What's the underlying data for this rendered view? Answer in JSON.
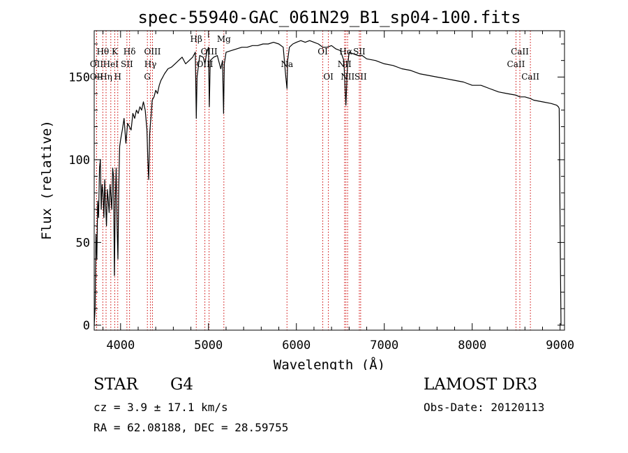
{
  "chart_data": {
    "type": "line",
    "title": "spec-55940-GAC_061N29_B1_sp04-100.fits",
    "xlabel": "Wavelength (Å)",
    "ylabel": "Flux (relative)",
    "xlim": [
      3700,
      9050
    ],
    "ylim": [
      -3,
      178
    ],
    "x_ticks": [
      4000,
      5000,
      6000,
      7000,
      8000,
      9000
    ],
    "y_ticks": [
      0,
      50,
      100,
      150
    ],
    "grid": false,
    "series": [
      {
        "name": "spectrum",
        "color": "#000000",
        "x": [
          3700,
          3710,
          3720,
          3730,
          3740,
          3750,
          3760,
          3770,
          3780,
          3790,
          3800,
          3810,
          3820,
          3830,
          3840,
          3850,
          3860,
          3870,
          3880,
          3890,
          3900,
          3910,
          3920,
          3930,
          3940,
          3950,
          3960,
          3970,
          3980,
          3990,
          4000,
          4020,
          4040,
          4060,
          4080,
          4100,
          4120,
          4140,
          4160,
          4180,
          4200,
          4220,
          4240,
          4260,
          4280,
          4300,
          4310,
          4320,
          4330,
          4340,
          4350,
          4360,
          4380,
          4400,
          4420,
          4440,
          4460,
          4480,
          4500,
          4540,
          4580,
          4620,
          4660,
          4700,
          4740,
          4780,
          4820,
          4850,
          4861,
          4870,
          4900,
          4940,
          4960,
          4980,
          5000,
          5010,
          5020,
          5060,
          5100,
          5140,
          5160,
          5172,
          5180,
          5200,
          5260,
          5320,
          5380,
          5440,
          5500,
          5560,
          5620,
          5680,
          5740,
          5800,
          5850,
          5880,
          5893,
          5900,
          5920,
          5960,
          6000,
          6050,
          6100,
          6150,
          6200,
          6250,
          6300,
          6350,
          6400,
          6450,
          6500,
          6540,
          6563,
          6580,
          6600,
          6650,
          6700,
          6750,
          6800,
          6900,
          7000,
          7100,
          7200,
          7300,
          7400,
          7500,
          7600,
          7700,
          7800,
          7900,
          8000,
          8100,
          8200,
          8300,
          8400,
          8500,
          8542,
          8600,
          8662,
          8700,
          8800,
          8900,
          8960,
          8980,
          8990,
          9000,
          9005,
          9010
        ],
        "y": [
          0,
          10,
          55,
          40,
          75,
          65,
          95,
          100,
          70,
          85,
          80,
          65,
          88,
          72,
          60,
          82,
          75,
          68,
          85,
          78,
          70,
          95,
          90,
          30,
          75,
          95,
          60,
          40,
          85,
          108,
          112,
          118,
          125,
          110,
          122,
          120,
          118,
          128,
          125,
          130,
          128,
          132,
          130,
          135,
          130,
          118,
          100,
          88,
          115,
          122,
          128,
          136,
          138,
          142,
          140,
          145,
          148,
          150,
          152,
          155,
          156,
          158,
          160,
          162,
          158,
          160,
          162,
          165,
          125,
          150,
          163,
          162,
          158,
          165,
          168,
          132,
          160,
          162,
          163,
          155,
          160,
          128,
          158,
          165,
          166,
          167,
          168,
          168,
          169,
          169,
          170,
          170,
          171,
          170,
          168,
          150,
          143,
          160,
          168,
          170,
          171,
          172,
          171,
          172,
          171,
          170,
          168,
          168,
          169,
          167,
          166,
          160,
          133,
          155,
          165,
          164,
          163,
          163,
          161,
          160,
          158,
          157,
          155,
          154,
          152,
          151,
          150,
          149,
          148,
          147,
          145,
          145,
          143,
          141,
          140,
          139,
          138,
          138,
          137,
          136,
          135,
          134,
          133,
          132,
          131,
          60,
          30,
          0
        ]
      }
    ],
    "lines": [
      {
        "label": "Hθ",
        "wl": 3798,
        "row": 1
      },
      {
        "label": "OII",
        "wl": 3727,
        "row": 2
      },
      {
        "label": "OII",
        "wl": 3727,
        "row": 3
      },
      {
        "label": "Hη",
        "wl": 3835,
        "row": 3
      },
      {
        "label": "K",
        "wl": 3934,
        "row": 1
      },
      {
        "label": "HeI",
        "wl": 3889,
        "row": 2
      },
      {
        "label": "SII",
        "wl": 4072,
        "row": 2
      },
      {
        "label": "H",
        "wl": 3968,
        "row": 3
      },
      {
        "label": "Hδ",
        "wl": 4102,
        "row": 1
      },
      {
        "label": "OIII",
        "wl": 4363,
        "row": 1
      },
      {
        "label": "Hγ",
        "wl": 4340,
        "row": 2
      },
      {
        "label": "G",
        "wl": 4305,
        "row": 3
      },
      {
        "label": "OIII",
        "wl": 5007,
        "row": 1
      },
      {
        "label": "OIII",
        "wl": 4959,
        "row": 2
      },
      {
        "label": "Hβ",
        "wl": 4861,
        "row": 0
      },
      {
        "label": "Mg",
        "wl": 5175,
        "row": 0
      },
      {
        "label": "Na",
        "wl": 5893,
        "row": 2
      },
      {
        "label": "OI",
        "wl": 6300,
        "row": 1
      },
      {
        "label": "OI",
        "wl": 6364,
        "row": 3
      },
      {
        "label": "Hα",
        "wl": 6563,
        "row": 1
      },
      {
        "label": "SII",
        "wl": 6716,
        "row": 1
      },
      {
        "label": "NII",
        "wl": 6548,
        "row": 2
      },
      {
        "label": "NII",
        "wl": 6583,
        "row": 3
      },
      {
        "label": "SII",
        "wl": 6731,
        "row": 3
      },
      {
        "label": "CaII",
        "wl": 8542,
        "row": 1
      },
      {
        "label": "CaII",
        "wl": 8498,
        "row": 2
      },
      {
        "label": "CaII",
        "wl": 8662,
        "row": 3
      }
    ]
  },
  "info": {
    "class": "STAR",
    "subclass": "G4",
    "survey": "LAMOST DR3",
    "cz": "cz = 3.9 ± 17.1 km/s",
    "obs_date": "Obs-Date: 20120113",
    "radec": "RA =  62.08188, DEC =  28.59755"
  }
}
